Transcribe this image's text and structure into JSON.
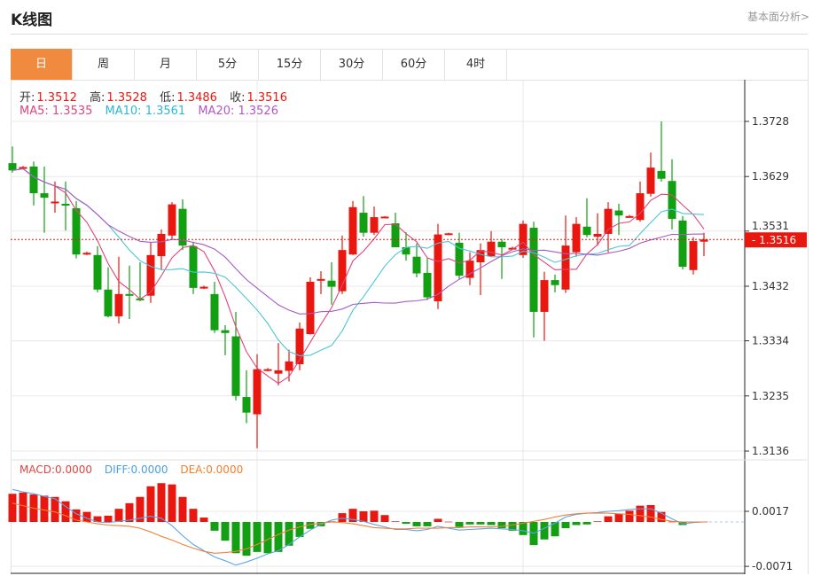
{
  "header": {
    "title": "K线图",
    "fundamental_link": "基本面分析>"
  },
  "tabs": [
    {
      "label": "日",
      "active": true
    },
    {
      "label": "周"
    },
    {
      "label": "月"
    },
    {
      "label": "5分"
    },
    {
      "label": "15分"
    },
    {
      "label": "30分"
    },
    {
      "label": "60分"
    },
    {
      "label": "4时"
    }
  ],
  "ohlc_info": {
    "open_label": "开:",
    "open": "1.3512",
    "high_label": "高:",
    "high": "1.3528",
    "low_label": "低:",
    "low": "1.3486",
    "close_label": "收:",
    "close": "1.3516"
  },
  "ma_info": {
    "ma5": "MA5: 1.3535",
    "ma10": "MA10: 1.3561",
    "ma20": "MA20: 1.3526"
  },
  "macd_info": {
    "macd": "MACD:0.0000",
    "diff": "DIFF:0.0000",
    "dea": "DEA:0.0000"
  },
  "colors": {
    "accent": "#f08a3e",
    "up": "#e8170f",
    "down": "#12a012",
    "ma5": "#e0457b",
    "ma10": "#4cc6d6",
    "ma20": "#a65cc0",
    "diff": "#5aa5e8",
    "dea": "#f0813a"
  },
  "chart_data": [
    {
      "type": "candlestick",
      "y_ticks": [
        "1.3728",
        "1.3629",
        "1.3531",
        "1.3432",
        "1.3334",
        "1.3235",
        "1.3136"
      ],
      "ylim": [
        1.3136,
        1.3728
      ],
      "current_price": "1.3516",
      "grid": true,
      "moving_averages": [
        "MA5",
        "MA10",
        "MA20"
      ],
      "ohlc": [
        [
          1.3653,
          1.3683,
          1.3636,
          1.364
        ],
        [
          1.3645,
          1.3648,
          1.3643,
          1.3646
        ],
        [
          1.3647,
          1.3656,
          1.3577,
          1.3599
        ],
        [
          1.3599,
          1.3647,
          1.3528,
          1.3591
        ],
        [
          1.3582,
          1.362,
          1.3564,
          1.3584
        ],
        [
          1.358,
          1.362,
          1.3532,
          1.3578
        ],
        [
          1.3572,
          1.3585,
          1.3482,
          1.3489
        ],
        [
          1.349,
          1.3494,
          1.3488,
          1.3492
        ],
        [
          1.3488,
          1.3504,
          1.3421,
          1.3426
        ],
        [
          1.3426,
          1.3466,
          1.3376,
          1.3378
        ],
        [
          1.3378,
          1.3485,
          1.3365,
          1.3418
        ],
        [
          1.3418,
          1.3469,
          1.3373,
          1.3415
        ],
        [
          1.341,
          1.3475,
          1.3405,
          1.3408
        ],
        [
          1.3415,
          1.351,
          1.3402,
          1.3488
        ],
        [
          1.3486,
          1.3534,
          1.3462,
          1.3526
        ],
        [
          1.3523,
          1.3583,
          1.3517,
          1.3579
        ],
        [
          1.3571,
          1.3588,
          1.3497,
          1.3505
        ],
        [
          1.3504,
          1.3512,
          1.3418,
          1.3429
        ],
        [
          1.3429,
          1.3433,
          1.3427,
          1.3431
        ],
        [
          1.3418,
          1.344,
          1.3348,
          1.3353
        ],
        [
          1.3353,
          1.3362,
          1.3308,
          1.3348
        ],
        [
          1.3342,
          1.3386,
          1.3227,
          1.3235
        ],
        [
          1.3233,
          1.3281,
          1.3186,
          1.3205
        ],
        [
          1.3202,
          1.331,
          1.3141,
          1.3283
        ],
        [
          1.3281,
          1.3285,
          1.3279,
          1.3283
        ],
        [
          1.3275,
          1.333,
          1.3254,
          1.3281
        ],
        [
          1.328,
          1.3318,
          1.3261,
          1.3297
        ],
        [
          1.3292,
          1.3367,
          1.3281,
          1.3356
        ],
        [
          1.3346,
          1.3448,
          1.3345,
          1.344
        ],
        [
          1.3442,
          1.3459,
          1.3418,
          1.3445
        ],
        [
          1.3442,
          1.3475,
          1.3399,
          1.3431
        ],
        [
          1.3423,
          1.3523,
          1.3418,
          1.3497
        ],
        [
          1.3489,
          1.3585,
          1.3488,
          1.3574
        ],
        [
          1.3564,
          1.3594,
          1.3521,
          1.3528
        ],
        [
          1.3528,
          1.3575,
          1.3524,
          1.3556
        ],
        [
          1.3556,
          1.3558,
          1.3555,
          1.3557
        ],
        [
          1.3545,
          1.3564,
          1.3502,
          1.3502
        ],
        [
          1.3502,
          1.3529,
          1.3478,
          1.3489
        ],
        [
          1.3485,
          1.3509,
          1.3448,
          1.3455
        ],
        [
          1.3456,
          1.3482,
          1.3407,
          1.3412
        ],
        [
          1.3405,
          1.3544,
          1.3391,
          1.3525
        ],
        [
          1.3526,
          1.3528,
          1.3524,
          1.3527
        ],
        [
          1.351,
          1.3528,
          1.3445,
          1.3451
        ],
        [
          1.3447,
          1.3493,
          1.3434,
          1.3478
        ],
        [
          1.3475,
          1.3509,
          1.3416,
          1.3497
        ],
        [
          1.3486,
          1.3531,
          1.3485,
          1.3512
        ],
        [
          1.3512,
          1.3517,
          1.3445,
          1.3502
        ],
        [
          1.35,
          1.3503,
          1.3498,
          1.3501
        ],
        [
          1.3488,
          1.355,
          1.3483,
          1.3544
        ],
        [
          1.3537,
          1.3548,
          1.334,
          1.3386
        ],
        [
          1.3386,
          1.3458,
          1.3334,
          1.3443
        ],
        [
          1.3443,
          1.3453,
          1.3421,
          1.3434
        ],
        [
          1.3426,
          1.3559,
          1.342,
          1.3505
        ],
        [
          1.3493,
          1.3556,
          1.3485,
          1.3544
        ],
        [
          1.3539,
          1.359,
          1.352,
          1.3524
        ],
        [
          1.3521,
          1.3563,
          1.3505,
          1.3526
        ],
        [
          1.3526,
          1.3583,
          1.3493,
          1.3571
        ],
        [
          1.3568,
          1.358,
          1.3524,
          1.3559
        ],
        [
          1.3557,
          1.356,
          1.3555,
          1.3558
        ],
        [
          1.3551,
          1.362,
          1.3548,
          1.3599
        ],
        [
          1.3598,
          1.3672,
          1.3593,
          1.3645
        ],
        [
          1.3639,
          1.3728,
          1.362,
          1.3625
        ],
        [
          1.3621,
          1.366,
          1.3534,
          1.3553
        ],
        [
          1.355,
          1.3558,
          1.3462,
          1.3467
        ],
        [
          1.3461,
          1.352,
          1.3453,
          1.3513
        ],
        [
          1.3512,
          1.3528,
          1.3486,
          1.3516
        ]
      ]
    },
    {
      "type": "bar",
      "y_ticks": [
        "0.0017",
        "-0.0071"
      ],
      "macd": [
        0.0045,
        0.0047,
        0.0044,
        0.0042,
        0.004,
        0.0033,
        0.002,
        0.0016,
        0.0009,
        0.001,
        0.0021,
        0.003,
        0.004,
        0.0057,
        0.0062,
        0.006,
        0.004,
        0.0021,
        0.0007,
        -0.0014,
        -0.003,
        -0.005,
        -0.0054,
        -0.0048,
        -0.005,
        -0.0048,
        -0.0038,
        -0.0024,
        -0.0011,
        -0.0007,
        0.0001,
        0.0014,
        0.0021,
        0.0017,
        0.0018,
        0.0011,
        0.0001,
        -0.0003,
        -0.0007,
        -0.0007,
        0.0005,
        0.0,
        -0.0008,
        -0.0004,
        -0.0004,
        -0.0005,
        -0.001,
        -0.0014,
        -0.0021,
        -0.0037,
        -0.0028,
        -0.0023,
        -0.001,
        -0.0005,
        -0.0004,
        0.0001,
        0.0009,
        0.0013,
        0.0018,
        0.0026,
        0.0027,
        0.0016,
        0.0,
        -0.0005,
        0.0,
        0.0
      ],
      "diff": [
        0.0052,
        0.0048,
        0.0045,
        0.0041,
        0.0037,
        0.0025,
        0.0013,
        0.0006,
        0.0,
        -0.0001,
        0.0001,
        0.0003,
        0.0006,
        0.0009,
        0.0006,
        -0.0006,
        -0.0022,
        -0.0036,
        -0.0046,
        -0.0056,
        -0.0062,
        -0.0069,
        -0.0064,
        -0.0058,
        -0.0051,
        -0.0046,
        -0.0036,
        -0.0024,
        -0.0013,
        -0.0004,
        0.0003,
        0.0006,
        0.0004,
        0.0001,
        -0.0004,
        -0.0008,
        -0.0012,
        -0.0012,
        -0.0014,
        -0.0012,
        -0.0007,
        -0.001,
        -0.0013,
        -0.0012,
        -0.0011,
        -0.001,
        -0.0011,
        -0.0012,
        -0.0014,
        -0.0018,
        -0.001,
        -0.0002,
        0.0008,
        0.0012,
        0.0014,
        0.0015,
        0.0017,
        0.0018,
        0.002,
        0.0021,
        0.0021,
        0.0014,
        0.0005,
        -0.0003,
        -0.0001,
        0.0
      ],
      "dea": [
        0.003,
        0.0026,
        0.0022,
        0.0019,
        0.0016,
        0.001,
        0.0003,
        0.0,
        -0.0003,
        -0.0005,
        -0.0006,
        -0.0007,
        -0.001,
        -0.0016,
        -0.0023,
        -0.0029,
        -0.0036,
        -0.0042,
        -0.0047,
        -0.005,
        -0.0049,
        -0.0047,
        -0.0043,
        -0.0036,
        -0.0028,
        -0.002,
        -0.0013,
        -0.0008,
        -0.0004,
        -0.0002,
        0.0,
        -0.0001,
        -0.0003,
        -0.0006,
        -0.0009,
        -0.001,
        -0.0011,
        -0.0011,
        -0.001,
        -0.001,
        -0.001,
        -0.0009,
        -0.0009,
        -0.0008,
        -0.0008,
        -0.0008,
        -0.0007,
        -0.0005,
        -0.0002,
        0.0001,
        0.0004,
        0.0008,
        0.0011,
        0.0013,
        0.0014,
        0.0014,
        0.0014,
        0.0013,
        0.0012,
        0.001,
        0.0008,
        0.0004,
        0.0001,
        0.0,
        0.0,
        0.0
      ]
    }
  ]
}
